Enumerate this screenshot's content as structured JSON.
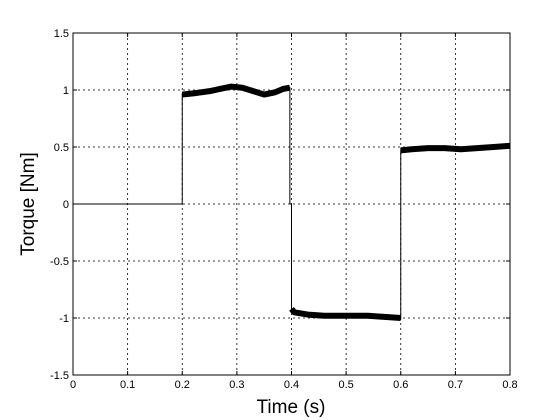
{
  "chart_data": {
    "type": "line",
    "title": "",
    "xlabel": "Time (s)",
    "ylabel": "Torque [Nm]",
    "xlim": [
      0,
      0.8
    ],
    "ylim": [
      -1.5,
      1.5
    ],
    "xticks": [
      0,
      0.1,
      0.2,
      0.3,
      0.4,
      0.5,
      0.6,
      0.7,
      0.8
    ],
    "xtick_labels": [
      "0",
      "0.1",
      "0.2",
      "0.3",
      "0.4",
      "0.5",
      "0.6",
      "0.7",
      "0.8"
    ],
    "yticks": [
      -1.5,
      -1,
      -0.5,
      0,
      0.5,
      1,
      1.5
    ],
    "ytick_labels": [
      "-1.5",
      "-1",
      "-0.5",
      "0",
      "0.5",
      "1",
      "1.5"
    ],
    "grid": true,
    "legend": "none",
    "line_color": "#000000",
    "series": [
      {
        "x": [
          0,
          0.2,
          0.2,
          0.22,
          0.25,
          0.27,
          0.29,
          0.31,
          0.33,
          0.35,
          0.37,
          0.385,
          0.397,
          0.397,
          0.4,
          0.4,
          0.405,
          0.43,
          0.46,
          0.5,
          0.54,
          0.57,
          0.6,
          0.6,
          0.62,
          0.65,
          0.68,
          0.71,
          0.74,
          0.77,
          0.8
        ],
        "y": [
          0,
          0,
          0.96,
          0.97,
          0.99,
          1.01,
          1.03,
          1.02,
          0.99,
          0.96,
          0.98,
          1.01,
          1.02,
          0.0,
          0.0,
          -0.92,
          -0.95,
          -0.97,
          -0.98,
          -0.98,
          -0.98,
          -0.99,
          -1.0,
          0.47,
          0.48,
          0.49,
          0.49,
          0.48,
          0.49,
          0.5,
          0.51
        ]
      }
    ]
  }
}
